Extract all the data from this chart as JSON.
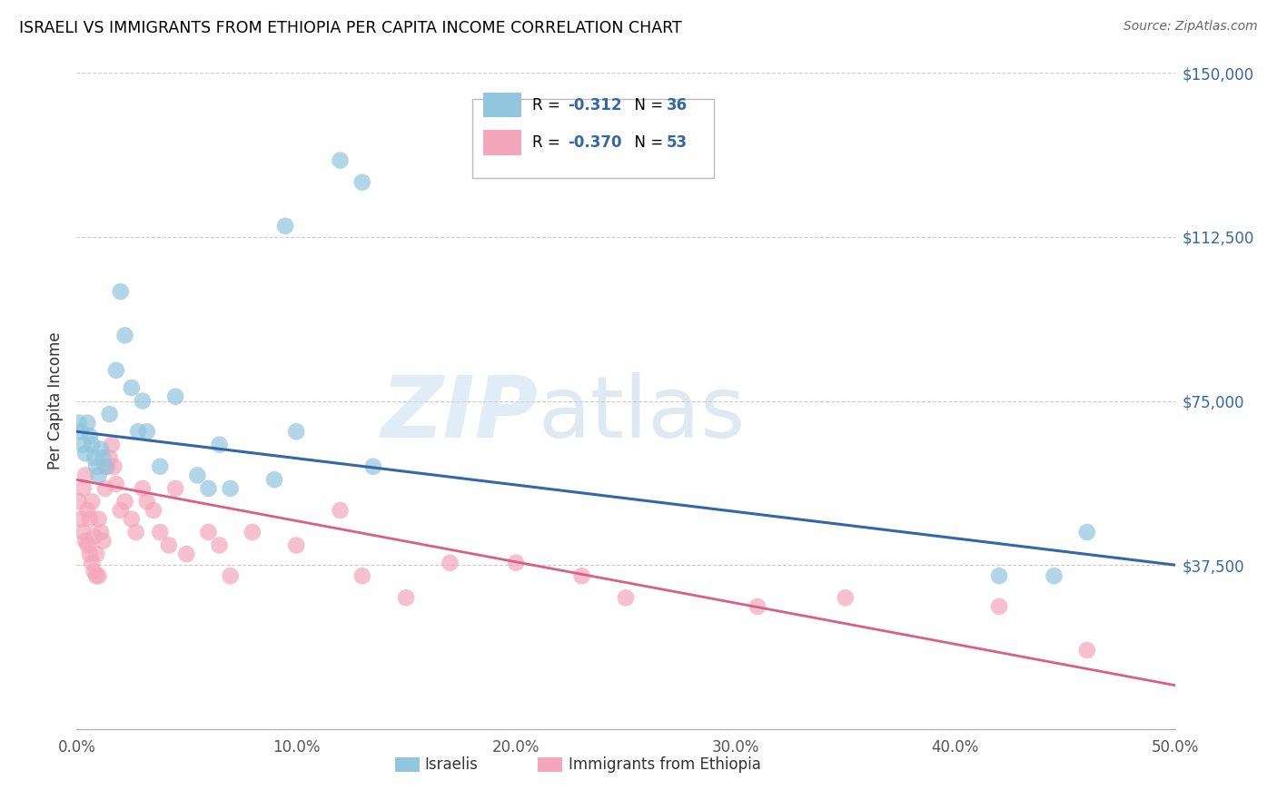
{
  "title": "ISRAELI VS IMMIGRANTS FROM ETHIOPIA PER CAPITA INCOME CORRELATION CHART",
  "source": "Source: ZipAtlas.com",
  "ylabel": "Per Capita Income",
  "xlim": [
    0.0,
    0.5
  ],
  "ylim": [
    0,
    150000
  ],
  "yticks": [
    0,
    37500,
    75000,
    112500,
    150000
  ],
  "ytick_labels": [
    "",
    "$37,500",
    "$75,000",
    "$112,500",
    "$150,000"
  ],
  "xtick_labels": [
    "0.0%",
    "10.0%",
    "20.0%",
    "30.0%",
    "40.0%",
    "50.0%"
  ],
  "xticks": [
    0.0,
    0.1,
    0.2,
    0.3,
    0.4,
    0.5
  ],
  "watermark_zip": "ZIP",
  "watermark_atlas": "atlas",
  "legend_r1_pre": "R = ",
  "legend_r1_val": "-0.312",
  "legend_r1_n_pre": "  N = ",
  "legend_r1_n_val": "36",
  "legend_r2_pre": "R = ",
  "legend_r2_val": "-0.370",
  "legend_r2_n_pre": "  N = ",
  "legend_r2_n_val": "53",
  "color_blue": "#92c5de",
  "color_pink": "#f4a6ba",
  "line_blue": "#3467a8",
  "line_pink": "#d95f85",
  "blue_line_y0": 68000,
  "blue_line_y1": 37500,
  "pink_line_y0": 57000,
  "pink_line_y1": 10000,
  "israelis_x": [
    0.001,
    0.002,
    0.003,
    0.004,
    0.005,
    0.006,
    0.007,
    0.008,
    0.009,
    0.01,
    0.011,
    0.012,
    0.013,
    0.015,
    0.018,
    0.02,
    0.022,
    0.025,
    0.028,
    0.03,
    0.032,
    0.038,
    0.045,
    0.055,
    0.06,
    0.065,
    0.07,
    0.09,
    0.095,
    0.1,
    0.12,
    0.13,
    0.135,
    0.42,
    0.445,
    0.46
  ],
  "israelis_y": [
    70000,
    68000,
    65000,
    63000,
    70000,
    67000,
    65000,
    62000,
    60000,
    58000,
    64000,
    62000,
    60000,
    72000,
    82000,
    100000,
    90000,
    78000,
    68000,
    75000,
    68000,
    60000,
    76000,
    58000,
    55000,
    65000,
    55000,
    57000,
    115000,
    68000,
    130000,
    125000,
    60000,
    35000,
    35000,
    45000
  ],
  "ethiopia_x": [
    0.001,
    0.002,
    0.003,
    0.003,
    0.004,
    0.004,
    0.005,
    0.005,
    0.006,
    0.006,
    0.007,
    0.007,
    0.008,
    0.008,
    0.009,
    0.009,
    0.01,
    0.01,
    0.011,
    0.012,
    0.013,
    0.014,
    0.015,
    0.016,
    0.017,
    0.018,
    0.02,
    0.022,
    0.025,
    0.027,
    0.03,
    0.032,
    0.035,
    0.038,
    0.042,
    0.045,
    0.05,
    0.06,
    0.065,
    0.07,
    0.08,
    0.1,
    0.12,
    0.13,
    0.15,
    0.17,
    0.2,
    0.23,
    0.25,
    0.31,
    0.35,
    0.42,
    0.46
  ],
  "ethiopia_y": [
    52000,
    48000,
    45000,
    55000,
    43000,
    58000,
    42000,
    50000,
    40000,
    48000,
    38000,
    52000,
    36000,
    44000,
    35000,
    40000,
    35000,
    48000,
    45000,
    43000,
    55000,
    60000,
    62000,
    65000,
    60000,
    56000,
    50000,
    52000,
    48000,
    45000,
    55000,
    52000,
    50000,
    45000,
    42000,
    55000,
    40000,
    45000,
    42000,
    35000,
    45000,
    42000,
    50000,
    35000,
    30000,
    38000,
    38000,
    35000,
    30000,
    28000,
    30000,
    28000,
    18000
  ]
}
